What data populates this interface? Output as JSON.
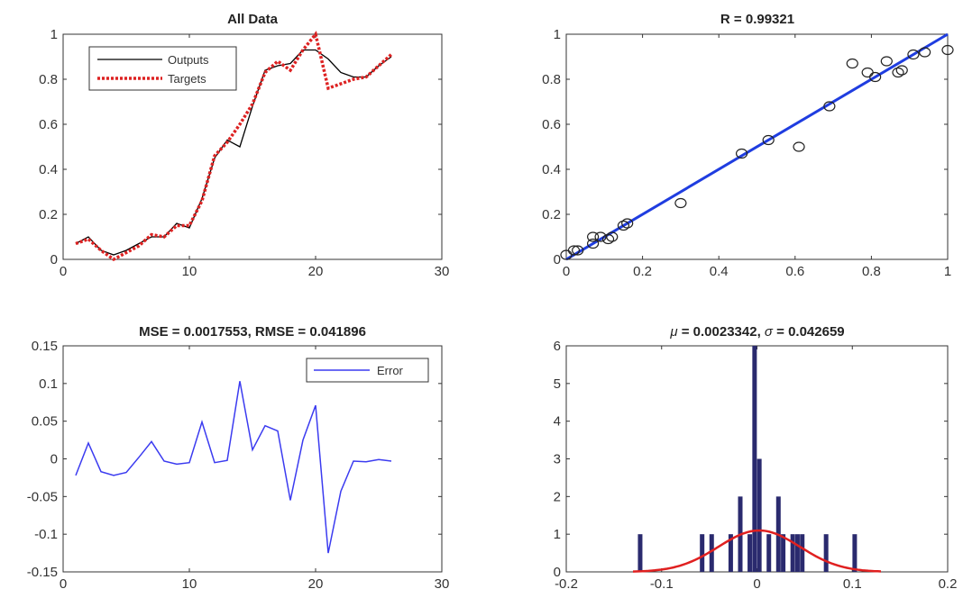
{
  "chart_data": [
    {
      "type": "line",
      "title": "All Data",
      "xlabel": "",
      "ylabel": "",
      "xlim": [
        0,
        30
      ],
      "ylim": [
        0,
        1
      ],
      "xticks": [
        0,
        10,
        20,
        30
      ],
      "yticks": [
        0,
        0.2,
        0.4,
        0.6,
        0.8,
        1
      ],
      "grid": false,
      "legend": "top-left",
      "series": [
        {
          "name": "Outputs",
          "color": "#000000",
          "style": "solid",
          "x": [
            1,
            2,
            3,
            4,
            5,
            6,
            7,
            8,
            9,
            10,
            11,
            12,
            13,
            14,
            15,
            16,
            17,
            18,
            19,
            20,
            21,
            22,
            23,
            24,
            25,
            26
          ],
          "y": [
            0.07,
            0.1,
            0.04,
            0.02,
            0.04,
            0.07,
            0.1,
            0.1,
            0.16,
            0.14,
            0.27,
            0.45,
            0.53,
            0.5,
            0.68,
            0.84,
            0.86,
            0.87,
            0.93,
            0.93,
            0.89,
            0.83,
            0.81,
            0.81,
            0.86,
            0.9
          ]
        },
        {
          "name": "Targets",
          "color": "#dd2222",
          "style": "dotted",
          "x": [
            1,
            2,
            3,
            4,
            5,
            6,
            7,
            8,
            9,
            10,
            11,
            12,
            13,
            14,
            15,
            16,
            17,
            18,
            19,
            20,
            21,
            22,
            23,
            24,
            25,
            26
          ],
          "y": [
            0.07,
            0.09,
            0.04,
            0.0,
            0.03,
            0.06,
            0.11,
            0.1,
            0.15,
            0.15,
            0.26,
            0.46,
            0.52,
            0.6,
            0.69,
            0.83,
            0.88,
            0.84,
            0.93,
            1.0,
            0.76,
            0.78,
            0.8,
            0.81,
            0.86,
            0.91
          ]
        }
      ]
    },
    {
      "type": "scatter",
      "title": "R = 0.99321",
      "xlabel": "",
      "ylabel": "",
      "xlim": [
        0,
        1
      ],
      "ylim": [
        0,
        1
      ],
      "xticks": [
        0,
        0.2,
        0.4,
        0.6,
        0.8,
        1
      ],
      "yticks": [
        0,
        0.2,
        0.4,
        0.6,
        0.8,
        1
      ],
      "grid": false,
      "points": [
        [
          0.0,
          0.02
        ],
        [
          0.02,
          0.04
        ],
        [
          0.03,
          0.04
        ],
        [
          0.07,
          0.07
        ],
        [
          0.07,
          0.1
        ],
        [
          0.09,
          0.1
        ],
        [
          0.11,
          0.09
        ],
        [
          0.12,
          0.1
        ],
        [
          0.15,
          0.15
        ],
        [
          0.16,
          0.16
        ],
        [
          0.3,
          0.25
        ],
        [
          0.46,
          0.47
        ],
        [
          0.53,
          0.53
        ],
        [
          0.61,
          0.5
        ],
        [
          0.69,
          0.68
        ],
        [
          0.75,
          0.87
        ],
        [
          0.79,
          0.83
        ],
        [
          0.81,
          0.81
        ],
        [
          0.84,
          0.88
        ],
        [
          0.87,
          0.83
        ],
        [
          0.88,
          0.84
        ],
        [
          0.91,
          0.91
        ],
        [
          0.94,
          0.92
        ],
        [
          1.0,
          0.93
        ]
      ],
      "fit_line": {
        "x": [
          0,
          1
        ],
        "y": [
          0,
          1
        ],
        "color": "#1f3de0"
      }
    },
    {
      "type": "line",
      "title": "MSE = 0.0017553, RMSE = 0.041896",
      "xlabel": "",
      "ylabel": "",
      "xlim": [
        0,
        30
      ],
      "ylim": [
        -0.15,
        0.15
      ],
      "xticks": [
        0,
        10,
        20,
        30
      ],
      "yticks": [
        -0.15,
        -0.1,
        -0.05,
        0,
        0.05,
        0.1,
        0.15
      ],
      "grid": false,
      "legend": "top-right",
      "series": [
        {
          "name": "Error",
          "color": "#3b3bf0",
          "style": "solid",
          "x": [
            1,
            2,
            3,
            4,
            5,
            6,
            7,
            8,
            9,
            10,
            11,
            12,
            13,
            14,
            15,
            16,
            17,
            18,
            19,
            20,
            21,
            22,
            23,
            24,
            25,
            26
          ],
          "y": [
            -0.022,
            0.021,
            -0.017,
            -0.022,
            -0.018,
            0.002,
            0.023,
            -0.003,
            -0.007,
            -0.005,
            0.049,
            -0.005,
            -0.002,
            0.103,
            0.012,
            0.044,
            0.037,
            -0.055,
            0.025,
            0.071,
            -0.125,
            -0.043,
            -0.003,
            -0.004,
            -0.001,
            -0.003
          ]
        }
      ]
    },
    {
      "type": "bar",
      "title": "μ = 0.0023342, σ = 0.042659",
      "title_mu": "μ",
      "title_mu_value": " = 0.0023342, ",
      "title_sigma": "σ",
      "title_sigma_value": " = 0.042659",
      "xlabel": "",
      "ylabel": "",
      "xlim": [
        -0.2,
        0.2
      ],
      "ylim": [
        0,
        6
      ],
      "xticks": [
        -0.2,
        -0.1,
        0,
        0.1,
        0.2
      ],
      "xticklabels": [
        "-0.2",
        "-0.1",
        "0",
        "0.1",
        "0.2"
      ],
      "yticks": [
        0,
        1,
        2,
        3,
        4,
        5,
        6
      ],
      "grid": false,
      "bar_color": "#2a2a6e",
      "bars": [
        {
          "x": -0.1225,
          "value": 1
        },
        {
          "x": -0.0575,
          "value": 1
        },
        {
          "x": -0.0475,
          "value": 1
        },
        {
          "x": -0.0275,
          "value": 1
        },
        {
          "x": -0.0175,
          "value": 2
        },
        {
          "x": -0.0075,
          "value": 1
        },
        {
          "x": -0.0025,
          "value": 6
        },
        {
          "x": 0.0025,
          "value": 3
        },
        {
          "x": 0.0125,
          "value": 1
        },
        {
          "x": 0.0225,
          "value": 2
        },
        {
          "x": 0.0275,
          "value": 1
        },
        {
          "x": 0.0375,
          "value": 1
        },
        {
          "x": 0.0425,
          "value": 1
        },
        {
          "x": 0.0475,
          "value": 1
        },
        {
          "x": 0.0725,
          "value": 1
        },
        {
          "x": 0.1025,
          "value": 1
        }
      ],
      "fit_curve": {
        "mu": 0.0023342,
        "sigma": 0.042659,
        "peak": 1.1,
        "color": "#e02020",
        "range": [
          -0.13,
          0.13
        ]
      }
    }
  ]
}
